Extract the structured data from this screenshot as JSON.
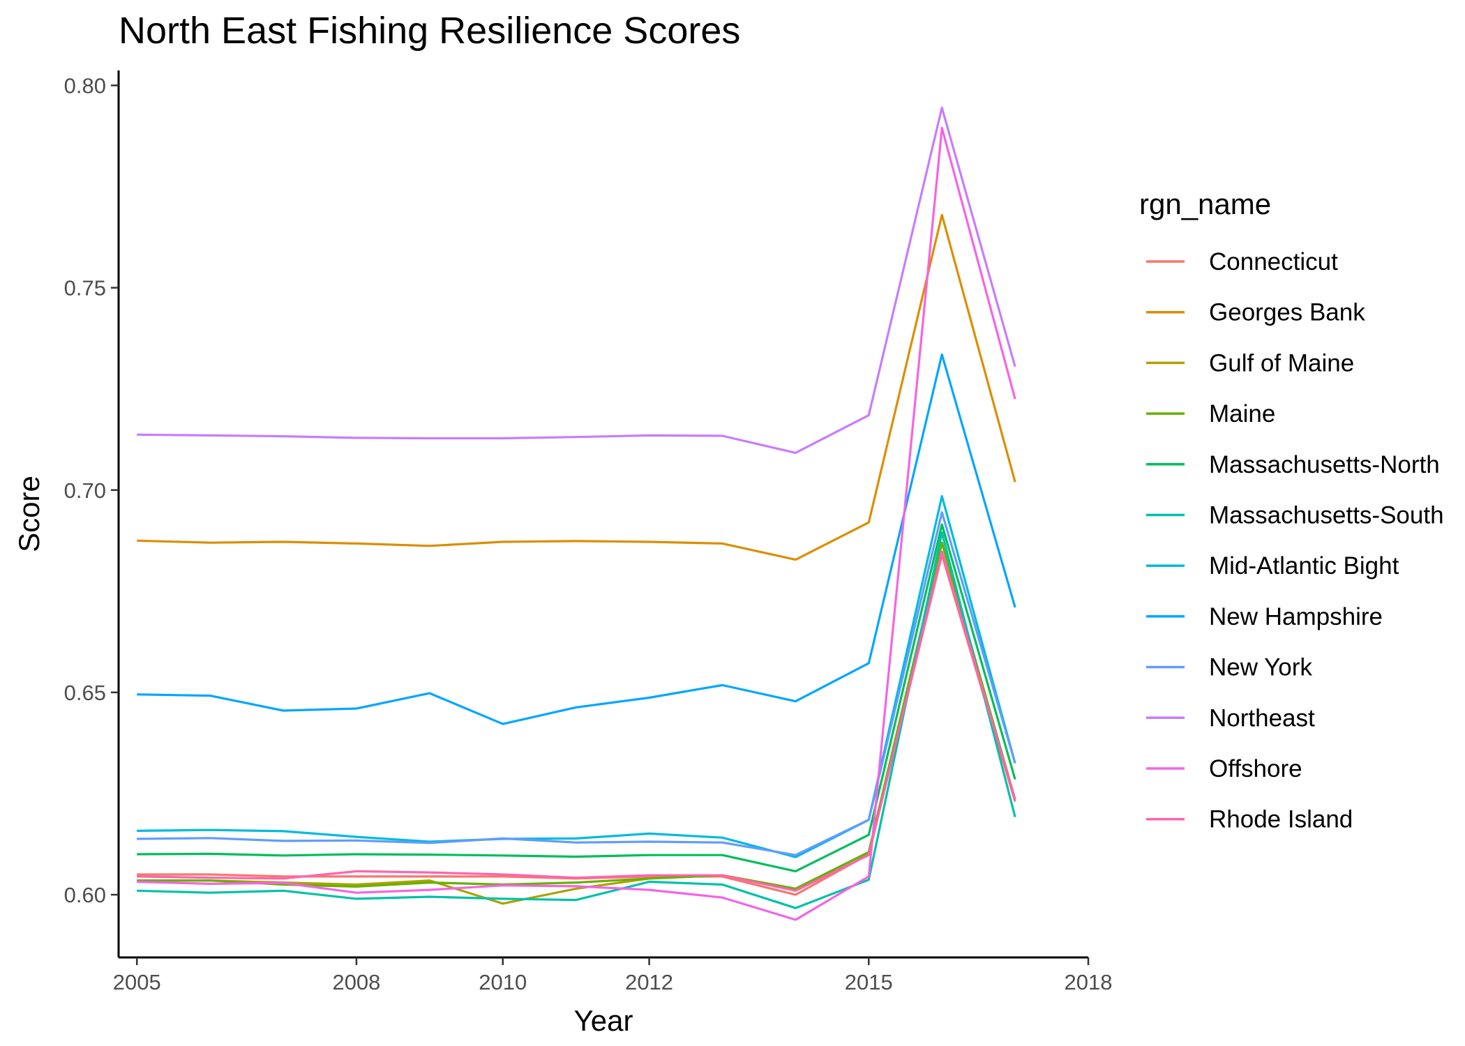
{
  "chart_data": {
    "type": "line",
    "title": "North East Fishing Resilience Scores",
    "xlabel": "Year",
    "ylabel": "Score",
    "xlim": [
      2004.75,
      2018.0
    ],
    "ylim": [
      0.5845,
      0.8037
    ],
    "x_ticks": [
      "2005",
      "2008",
      "2010",
      "2012",
      "2015",
      "2018"
    ],
    "y_ticks": [
      "0.60",
      "0.65",
      "0.70",
      "0.75",
      "0.80"
    ],
    "legend_title": "rgn_name",
    "legend_position": "right",
    "grid": false,
    "x": [
      2005,
      2006,
      2007,
      2008,
      2009,
      2010,
      2011,
      2012,
      2013,
      2014,
      2015,
      2016,
      2017
    ],
    "series": [
      {
        "name": "Connecticut",
        "color": "#F8766D",
        "values": [
          0.605,
          0.605,
          0.6045,
          0.6045,
          0.6045,
          0.6045,
          0.604,
          0.6045,
          0.6045,
          0.6,
          0.61,
          0.684,
          0.623
        ]
      },
      {
        "name": "Georges Bank",
        "color": "#DB8E00",
        "values": [
          0.6875,
          0.687,
          0.6872,
          0.6868,
          0.6862,
          0.6872,
          0.6874,
          0.6872,
          0.6868,
          0.6828,
          0.692,
          0.768,
          0.702
        ]
      },
      {
        "name": "Gulf of Maine",
        "color": "#AEA200",
        "values": [
          0.6035,
          0.6035,
          0.603,
          0.6025,
          0.6035,
          0.5978,
          0.6015,
          0.604,
          0.6048,
          0.6015,
          0.6105,
          0.687,
          0.6235
        ]
      },
      {
        "name": "Maine",
        "color": "#64B200",
        "values": [
          0.6035,
          0.6035,
          0.6025,
          0.602,
          0.603,
          0.6025,
          0.603,
          0.604,
          0.6048,
          0.6015,
          0.6105,
          0.687,
          0.6235
        ]
      },
      {
        "name": "Massachusetts-North",
        "color": "#00BD5C",
        "values": [
          0.61,
          0.6101,
          0.6097,
          0.61,
          0.6099,
          0.6097,
          0.6094,
          0.6098,
          0.6098,
          0.6058,
          0.6148,
          0.6915,
          0.6285
        ]
      },
      {
        "name": "Massachusetts-South",
        "color": "#00C1A7",
        "values": [
          0.601,
          0.6005,
          0.601,
          0.599,
          0.5995,
          0.599,
          0.5987,
          0.6032,
          0.6025,
          0.5967,
          0.6037,
          0.6895,
          0.6192
        ]
      },
      {
        "name": "Mid-Atlantic Bight",
        "color": "#00BADE",
        "values": [
          0.6158,
          0.616,
          0.6157,
          0.6143,
          0.6131,
          0.6138,
          0.6139,
          0.6151,
          0.6141,
          0.6093,
          0.6185,
          0.6985,
          0.6325
        ]
      },
      {
        "name": "New Hampshire",
        "color": "#00A6FF",
        "values": [
          0.6495,
          0.6492,
          0.6455,
          0.646,
          0.6498,
          0.6422,
          0.6463,
          0.6487,
          0.6518,
          0.6478,
          0.6572,
          0.7335,
          0.671
        ]
      },
      {
        "name": "New York",
        "color": "#619CFF",
        "values": [
          0.6138,
          0.614,
          0.6133,
          0.6134,
          0.6128,
          0.6139,
          0.6129,
          0.6131,
          0.6129,
          0.6098,
          0.6185,
          0.6945,
          0.6325
        ]
      },
      {
        "name": "Northeast",
        "color": "#C77CFF",
        "values": [
          0.7137,
          0.7135,
          0.7133,
          0.7129,
          0.7128,
          0.7128,
          0.7131,
          0.7135,
          0.7134,
          0.7092,
          0.7185,
          0.7945,
          0.7305
        ]
      },
      {
        "name": "Offshore",
        "color": "#F564E3",
        "values": [
          0.6032,
          0.6027,
          0.6029,
          0.6005,
          0.6012,
          0.6023,
          0.6021,
          0.6012,
          0.5993,
          0.5938,
          0.6045,
          0.7895,
          0.7225
        ]
      },
      {
        "name": "Rhode Island",
        "color": "#FF64B0",
        "values": [
          0.6045,
          0.6042,
          0.604,
          0.6058,
          0.6055,
          0.605,
          0.6042,
          0.6048,
          0.6048,
          0.601,
          0.6098,
          0.6848,
          0.6235
        ]
      }
    ]
  }
}
